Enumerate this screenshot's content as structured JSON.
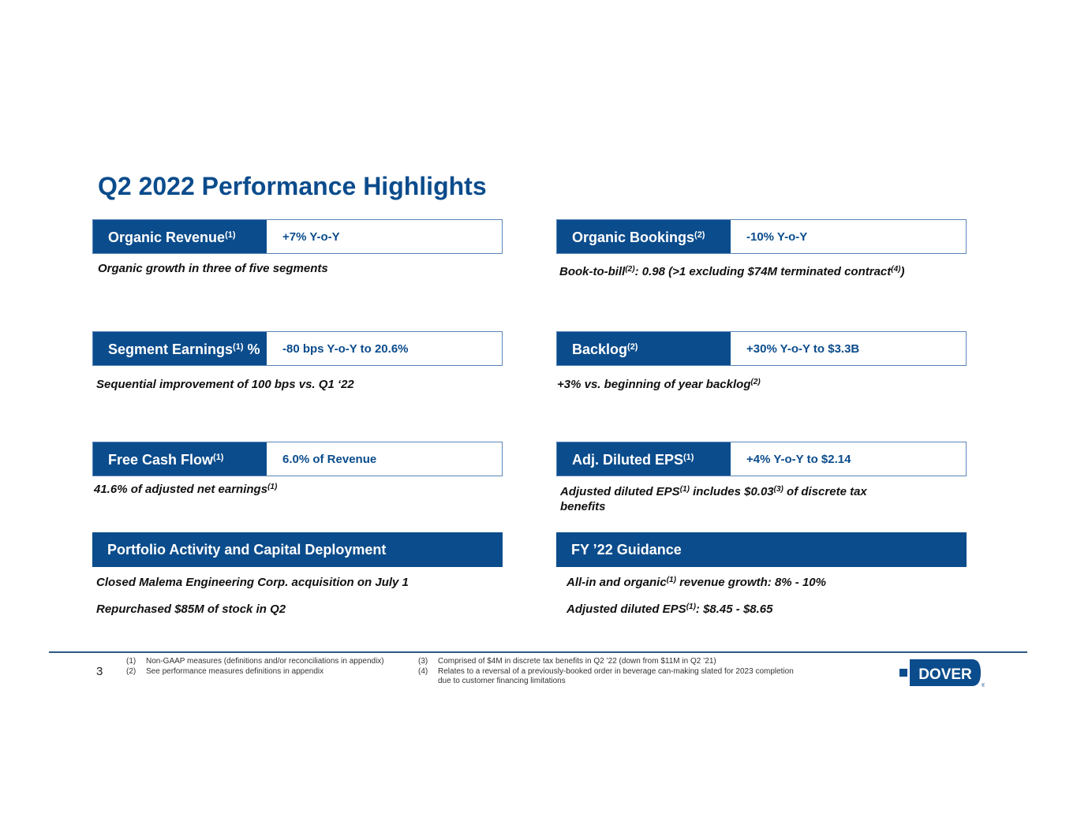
{
  "title": "Q2 2022 Performance Highlights",
  "cards": [
    {
      "label": "Organic Revenue",
      "sup": "(1)",
      "suffix": "",
      "value": "+7% Y-o-Y",
      "desc": [
        "Organic growth in three of five segments"
      ]
    },
    {
      "label": "Organic Bookings",
      "sup": "(2)",
      "suffix": "",
      "value": "-10% Y-o-Y",
      "desc": [
        "Book-to-bill",
        "(2)",
        ": 0.98 (>1 excluding $74M terminated contract",
        "(4)",
        ")"
      ]
    },
    {
      "label": "Segment Earnings",
      "sup": "(1)",
      "suffix": " %",
      "value": "-80 bps Y-o-Y to 20.6%",
      "desc": [
        "Sequential improvement of 100 bps vs. Q1 ‘22"
      ]
    },
    {
      "label": "Backlog",
      "sup": "(2)",
      "suffix": "",
      "value": "+30% Y-o-Y to $3.3B",
      "desc": [
        "+3% vs. beginning of year backlog",
        "(2)"
      ]
    },
    {
      "label": "Free Cash Flow",
      "sup": "(1)",
      "suffix": "",
      "value": "6.0% of Revenue",
      "desc": [
        "41.6% of adjusted net earnings",
        "(1)"
      ]
    },
    {
      "label": "Adj. Diluted EPS",
      "sup": "(1)",
      "suffix": "",
      "value": "+4% Y-o-Y to $2.14",
      "desc": [
        "Adjusted diluted EPS",
        "(1)",
        " includes $0.03",
        "(3)",
        " of discrete tax benefits"
      ]
    }
  ],
  "portfolio": {
    "label": "Portfolio Activity and Capital Deployment",
    "items": [
      "Closed Malema Engineering Corp. acquisition on July 1",
      "Repurchased $85M of stock in Q2"
    ]
  },
  "guidance": {
    "label": "FY ’22 Guidance",
    "items": [
      [
        "All-in and organic",
        "(1)",
        " revenue growth: 8% - 10%"
      ],
      [
        "Adjusted diluted EPS",
        "(1)",
        ": $8.45 - $8.65"
      ]
    ]
  },
  "page_number": "3",
  "footnotes": [
    {
      "n": "(1)",
      "text": "Non-GAAP measures (definitions and/or reconciliations in appendix)"
    },
    {
      "n": "(2)",
      "text": "See performance measures definitions in appendix"
    },
    {
      "n": "(3)",
      "text": "Comprised of $4M in discrete tax benefits in Q2 ’22 (down from $11M in Q2 ’21)"
    },
    {
      "n": "(4)",
      "text": "Relates to a reversal of a previously-booked order in beverage can-making slated for 2023 completion",
      "text2": "due to customer financing limitations"
    }
  ],
  "logo": {
    "text": "DOVER",
    "reg": "®"
  },
  "colors": {
    "brand": "#0B4C8C",
    "border": "#5B86B8"
  }
}
